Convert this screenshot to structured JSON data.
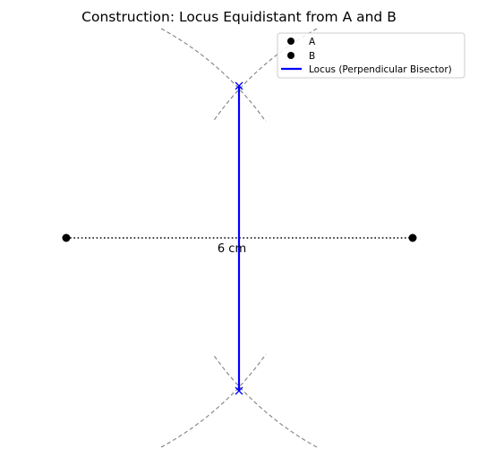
{
  "title": "Construction: Locus Equidistant from A and B",
  "segment_label": "6 cm",
  "legend": {
    "items": [
      {
        "label": "A",
        "kind": "dot",
        "color": "#000000"
      },
      {
        "label": "B",
        "kind": "dot",
        "color": "#000000"
      },
      {
        "label": "Locus (Perpendicular Bisector)",
        "kind": "line",
        "color": "#0000ff"
      }
    ]
  },
  "colors": {
    "points": "#000000",
    "segment": "#000000",
    "locus": "#0000ff",
    "arcs": "#808080"
  }
}
